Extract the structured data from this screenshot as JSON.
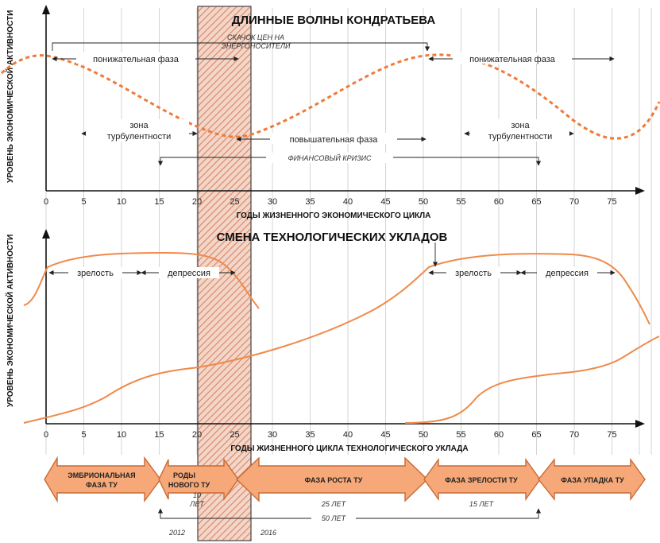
{
  "top": {
    "title": "ДЛИННЫЕ ВОЛНЫ КОНДРАТЬЕВА",
    "ylabel": "УРОВЕНЬ ЭКОНОМИЧЕСКОЙ АКТИВНОСТИ",
    "xlabel": "ГОДЫ ЖИЗНЕННОГО ЭКОНОМИЧЕСКОГО ЦИКЛА",
    "energy_label_1": "СКАЧОК ЦЕН НА",
    "energy_label_2": "ЭНЕРГОНОСИТЕЛИ",
    "down_phase_1": "понижательная фаза",
    "down_phase_2": "понижательная фаза",
    "turb_1_a": "зона",
    "turb_1_b": "турбулентности",
    "turb_2_a": "зона",
    "turb_2_b": "турбулентности",
    "up_phase": "повышательная фаза",
    "crisis": "ФИНАНСОВЫЙ КРИЗИС"
  },
  "bottom": {
    "title": "СМЕНА ТЕХНОЛОГИЧЕСКИХ УКЛАДОВ",
    "ylabel": "УРОВЕНЬ ЭКОНОМИЧЕСКОЙ АКТИВНОСТИ",
    "xlabel": "ГОДЫ ЖИЗНЕННОГО ЦИКЛА ТЕХНОЛОГИЧЕСКОГО УКЛАДА",
    "maturity_1": "зрелость",
    "depression_1": "депрессия",
    "maturity_2": "зрелость",
    "depression_2": "депрессия"
  },
  "ticks": [
    "0",
    "5",
    "10",
    "15",
    "20",
    "25",
    "30",
    "35",
    "40",
    "45",
    "50",
    "55",
    "60",
    "65",
    "70",
    "75"
  ],
  "phases": {
    "embryonic_1": "ЭМБРИОНАЛЬНАЯ",
    "embryonic_2": "ФАЗА ТУ",
    "birth_1": "РОДЫ",
    "birth_2": "НОВОГО ТУ",
    "birth_years_1": "10",
    "birth_years_2": "ЛЕТ",
    "growth": "ФАЗА РОСТА ТУ",
    "growth_years": "25 ЛЕТ",
    "maturity": "ФАЗА ЗРЕЛОСТИ ТУ",
    "maturity_years": "15 ЛЕТ",
    "decline": "ФАЗА УПАДКА ТУ",
    "total_years": "50 ЛЕТ",
    "year_start": "2012",
    "year_end": "2016"
  },
  "colors": {
    "orange": "#ef8a4a",
    "arrow_fill": "#f6a878",
    "arrow_stroke": "#c86a35",
    "hatch": "#d98a6e"
  }
}
